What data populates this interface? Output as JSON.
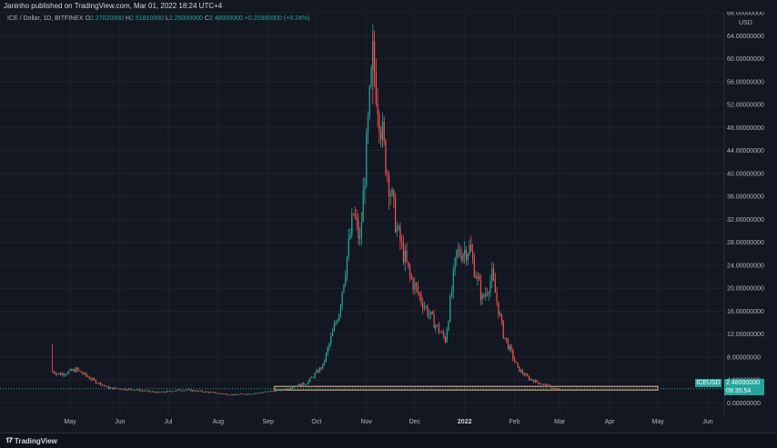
{
  "header": {
    "publisher": "Janinho published on TradingView.com, Mar 01, 2022 18:24 UTC+4",
    "symbol_desc": "ICE / Dollar, 1D, BITFINEX",
    "open_label": "O",
    "open": "2.27020000",
    "high_label": "H",
    "high": "2.51810000",
    "low_label": "L",
    "low": "2.25000000",
    "close_label": "C",
    "close": "2.48000000",
    "change": "+0.20980000 (+9.24%)"
  },
  "price_tag": {
    "symbol": "ICEUSD",
    "last": "2.48000000",
    "countdown": "09:35:54"
  },
  "footer": {
    "brand": "TradingView"
  },
  "colors": {
    "background": "#131722",
    "up": "#26a69a",
    "down": "#ef5350",
    "grid": "#1e222d",
    "hline": "#f7c08a"
  },
  "chart_data": {
    "type": "candlestick",
    "symbol": "ICE / Dollar",
    "interval": "1D",
    "exchange": "BITFINEX",
    "y_axis_unit": "USD",
    "y_ticks": [
      "0.00000000",
      "4.00000000",
      "8.00000000",
      "12.00000000",
      "16.00000000",
      "20.00000000",
      "24.00000000",
      "28.00000000",
      "32.00000000",
      "36.00000000",
      "40.00000000",
      "44.00000000",
      "48.00000000",
      "52.00000000",
      "56.00000000",
      "60.00000000",
      "64.00000000",
      "68.00000000"
    ],
    "x_ticks": [
      "May",
      "Jun",
      "Jul",
      "Aug",
      "Sep",
      "Oct",
      "Nov",
      "Dec",
      "2022",
      "Feb",
      "Mar",
      "Apr",
      "May",
      "Jun"
    ],
    "ylim": [
      -2,
      68
    ],
    "horizontal_level": 2.48,
    "keypoints": [
      {
        "date": "2021-04-20",
        "close": 5.5
      },
      {
        "date": "2021-04-25",
        "close": 5.0
      },
      {
        "date": "2021-05-05",
        "close": 5.8
      },
      {
        "date": "2021-05-15",
        "close": 4.0
      },
      {
        "date": "2021-05-25",
        "close": 2.6
      },
      {
        "date": "2021-06-10",
        "close": 2.3
      },
      {
        "date": "2021-06-25",
        "close": 1.8
      },
      {
        "date": "2021-07-10",
        "close": 2.3
      },
      {
        "date": "2021-07-25",
        "close": 1.9
      },
      {
        "date": "2021-08-10",
        "close": 1.4
      },
      {
        "date": "2021-08-25",
        "close": 1.7
      },
      {
        "date": "2021-09-10",
        "close": 2.3
      },
      {
        "date": "2021-09-25",
        "close": 3.5
      },
      {
        "date": "2021-10-05",
        "close": 6.5
      },
      {
        "date": "2021-10-15",
        "close": 16.0
      },
      {
        "date": "2021-10-24",
        "close": 33.0
      },
      {
        "date": "2021-10-28",
        "close": 28.0
      },
      {
        "date": "2021-11-05",
        "close": 60.0
      },
      {
        "date": "2021-11-12",
        "close": 44.0
      },
      {
        "date": "2021-11-20",
        "close": 30.0
      },
      {
        "date": "2021-11-28",
        "close": 22.0
      },
      {
        "date": "2021-12-05",
        "close": 18.0
      },
      {
        "date": "2021-12-13",
        "close": 14.0
      },
      {
        "date": "2021-12-20",
        "close": 11.0
      },
      {
        "date": "2021-12-27",
        "close": 26.0
      },
      {
        "date": "2022-01-04",
        "close": 27.0
      },
      {
        "date": "2022-01-12",
        "close": 18.0
      },
      {
        "date": "2022-01-18",
        "close": 22.0
      },
      {
        "date": "2022-01-25",
        "close": 12.0
      },
      {
        "date": "2022-02-03",
        "close": 6.0
      },
      {
        "date": "2022-02-10",
        "close": 4.2
      },
      {
        "date": "2022-02-18",
        "close": 3.3
      },
      {
        "date": "2022-02-28",
        "close": 2.3
      },
      {
        "date": "2022-03-01",
        "close": 2.48
      }
    ]
  }
}
